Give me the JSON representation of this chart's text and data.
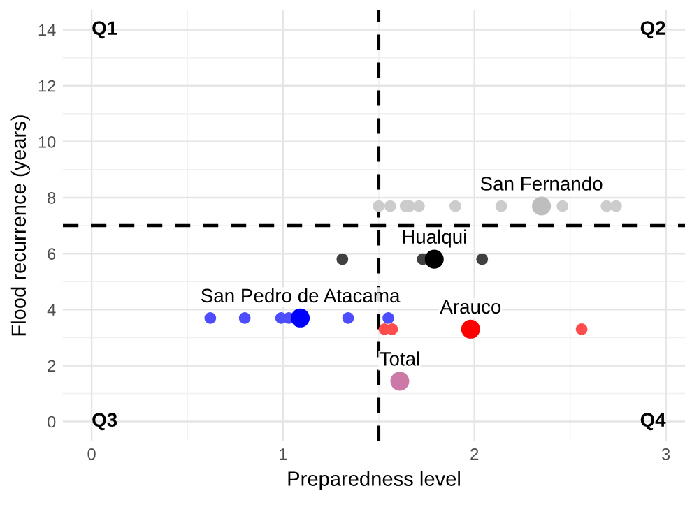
{
  "chart_data": {
    "type": "bubble",
    "xlabel": "Preparedness level",
    "ylabel": "Flood recurrence (years)",
    "xlim": [
      -0.15,
      3.1
    ],
    "ylim": [
      -0.7,
      14.7
    ],
    "xticks": [
      0,
      1,
      2,
      3
    ],
    "yticks": [
      0,
      2,
      4,
      6,
      8,
      10,
      12,
      14
    ],
    "grid": true,
    "legend": false,
    "annotations": [
      "Q1",
      "Q2",
      "Q3",
      "Q4"
    ],
    "ref_lines": [
      {
        "axis": "x",
        "value": 1.5,
        "color": "#000000",
        "line_style": "dashed"
      },
      {
        "axis": "y",
        "value": 7,
        "color": "#000000",
        "line_style": "dashed"
      }
    ],
    "series": [
      {
        "name": "San Fernando",
        "x": [
          1.5,
          1.56,
          1.64,
          1.66,
          1.71,
          1.9,
          2.14,
          2.35,
          2.46,
          2.69,
          2.74
        ],
        "values": [
          7.7,
          7.7,
          7.7,
          7.7,
          7.7,
          7.7,
          7.7,
          7.7,
          7.7,
          7.7,
          7.7
        ],
        "sizes": [
          0.38,
          0.38,
          0.38,
          0.38,
          0.38,
          0.38,
          0.38,
          1,
          0.38,
          0.38,
          0.38
        ],
        "colors": [
          "#cccccc",
          "#cccccc",
          "#cccccc",
          "#cccccc",
          "#cccccc",
          "#cccccc",
          "#cccccc",
          "#bebebe",
          "#cccccc",
          "#cccccc",
          "#cccccc"
        ]
      },
      {
        "name": "Hualqui",
        "x": [
          1.31,
          1.73,
          1.79,
          2.04
        ],
        "values": [
          5.8,
          5.8,
          5.8,
          5.8
        ],
        "sizes": [
          0.38,
          0.38,
          1,
          0.38
        ],
        "colors": [
          "#404040",
          "#404040",
          "#000000",
          "#404040"
        ]
      },
      {
        "name": "San Pedro de Atacama",
        "x": [
          0.62,
          0.8,
          0.99,
          1.03,
          1.09,
          1.34,
          1.55
        ],
        "values": [
          3.7,
          3.7,
          3.7,
          3.7,
          3.7,
          3.7,
          3.7
        ],
        "sizes": [
          0.38,
          0.38,
          0.38,
          0.38,
          1,
          0.38,
          0.38
        ],
        "colors": [
          "#4d4dff",
          "#4d4dff",
          "#4d4dff",
          "#4d4dff",
          "#0000ff",
          "#4d4dff",
          "#4d4dff"
        ]
      },
      {
        "name": "Arauco",
        "x": [
          1.53,
          1.57,
          1.98,
          2.56
        ],
        "values": [
          3.3,
          3.3,
          3.3,
          3.3
        ],
        "sizes": [
          0.38,
          0.38,
          1,
          0.38
        ],
        "colors": [
          "#ff4d4d",
          "#ff4d4d",
          "#ff0000",
          "#ff4d4d"
        ]
      },
      {
        "name": "Total",
        "x": [
          1.61
        ],
        "values": [
          1.44
        ],
        "sizes": [
          1
        ],
        "colors": [
          "#cc79a7"
        ]
      }
    ]
  }
}
